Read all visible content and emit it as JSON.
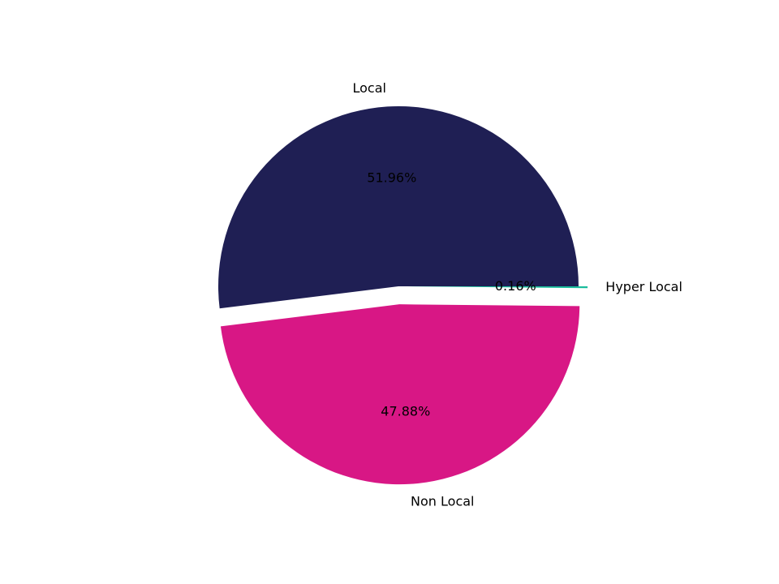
{
  "chart_data": {
    "type": "pie",
    "categories": [
      "Local",
      "Non Local",
      "Hyper Local"
    ],
    "values": [
      51.96,
      47.88,
      0.16
    ],
    "value_labels": [
      "51.96%",
      "47.88%",
      "0.16%"
    ],
    "colors": [
      "#1f1f54",
      "#d81785",
      "#1abc9c"
    ],
    "explode": [
      0,
      0.1,
      0.05
    ],
    "start_angle": 0
  }
}
